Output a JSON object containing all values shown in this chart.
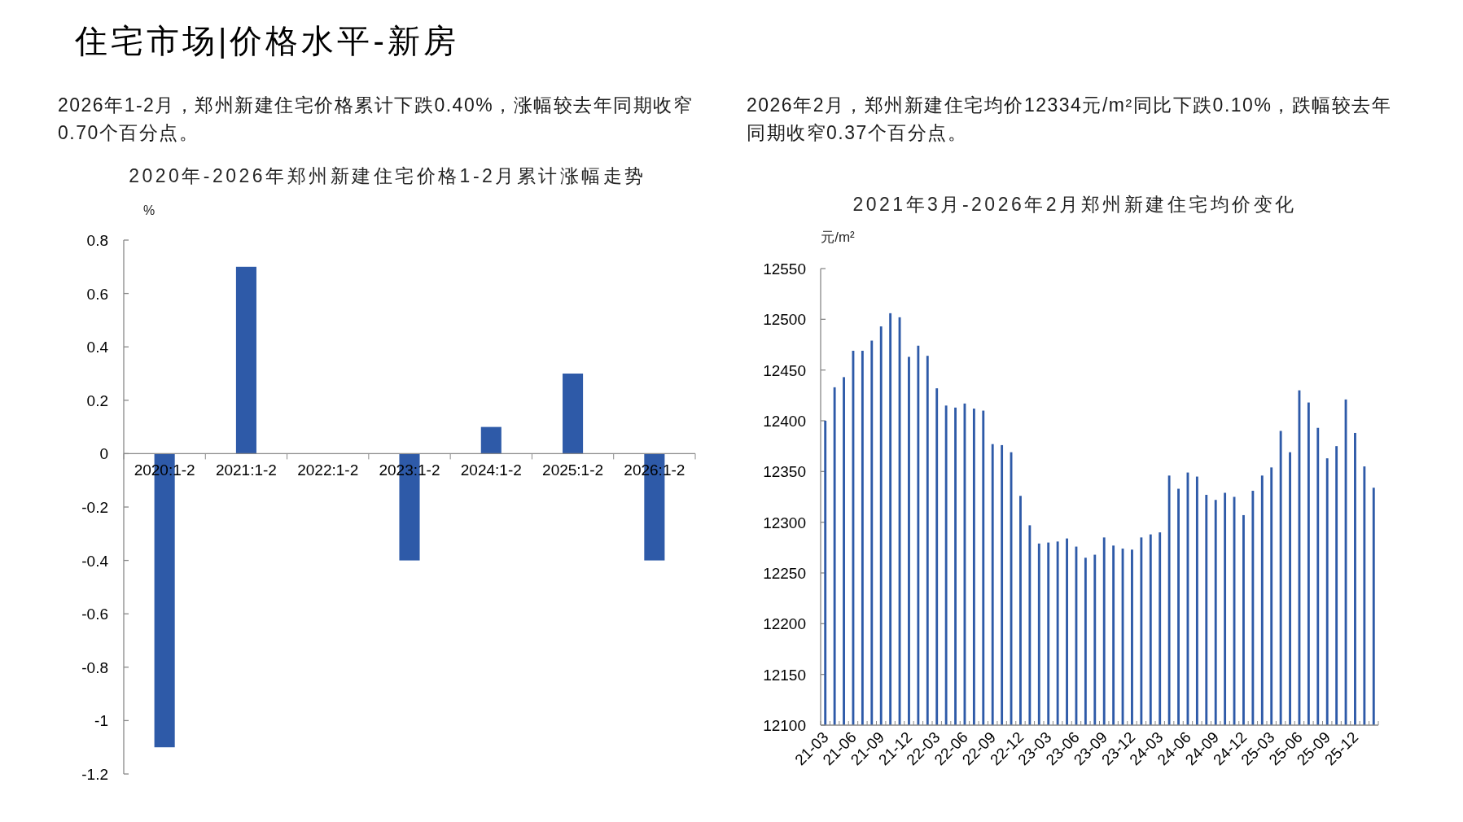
{
  "chart_data": [
    {
      "type": "other",
      "title": "住宅市场|价格水平-新房"
    },
    {
      "type": "bar",
      "title": "2020年-2026年郑州新建住宅价格1-2月累计涨幅走势",
      "ylabel": "%",
      "annotations": [
        "2026年1-2月，郑州新建住宅价格累计下跌0.40%，涨幅较去年同期收窄0.70个百分点。"
      ],
      "categories": [
        "2020:1-2",
        "2021:1-2",
        "2022:1-2",
        "2023:1-2",
        "2024:1-2",
        "2025:1-2",
        "2026:1-2"
      ],
      "values": [
        -1.1,
        0.7,
        0,
        -0.4,
        0.1,
        0.3,
        -0.4
      ],
      "color": "#2e5aa8",
      "ylim": [
        -1.2,
        0.8
      ],
      "yticks": [
        -1.2,
        -1,
        -0.8,
        -0.6,
        -0.4,
        -0.2,
        0,
        0.2,
        0.4,
        0.6,
        0.8
      ]
    },
    {
      "type": "bar",
      "title": "2021年3月-2026年2月郑州新建住宅均价变化",
      "ylabel": "元/m²",
      "annotations": [
        "2026年2月，郑州新建住宅均价12334元/m²同比下跌0.10%，跌幅较去年同期收窄0.37个百分点。"
      ],
      "categories": [
        "21-03",
        null,
        null,
        "21-06",
        null,
        null,
        "21-09",
        null,
        null,
        "21-12",
        null,
        null,
        "22-03",
        null,
        null,
        "22-06",
        null,
        null,
        "22-09",
        null,
        null,
        "22-12",
        null,
        null,
        "23-03",
        null,
        null,
        "23-06",
        null,
        null,
        "23-09",
        null,
        null,
        "23-12",
        null,
        null,
        "24-03",
        null,
        null,
        "24-06",
        null,
        null,
        "24-09",
        null,
        null,
        "24-12",
        null,
        null,
        "25-03",
        null,
        null,
        "25-06",
        null,
        null,
        "25-09",
        null,
        null,
        "25-12",
        null,
        null
      ],
      "values": [
        12400,
        12433,
        12443,
        12469,
        12469,
        12479,
        12493,
        12506,
        12502,
        12463,
        12474,
        12464,
        12432,
        12415,
        12413,
        12417,
        12412,
        12410,
        12377,
        12376,
        12369,
        12326,
        12297,
        12279,
        12280,
        12281,
        12284,
        12276,
        12265,
        12268,
        12285,
        12277,
        12274,
        12273,
        12285,
        12288,
        12290,
        12346,
        12333,
        12349,
        12345,
        12327,
        12322,
        12329,
        12325,
        12307,
        12331,
        12346,
        12354,
        12390,
        12369,
        12430,
        12418,
        12393,
        12363,
        12375,
        12421,
        12388,
        12355,
        12334
      ],
      "color": "#2e5aa8",
      "ylim": [
        12100,
        12550
      ],
      "yticks": [
        12100,
        12150,
        12200,
        12250,
        12300,
        12350,
        12400,
        12450,
        12500,
        12550
      ]
    }
  ]
}
